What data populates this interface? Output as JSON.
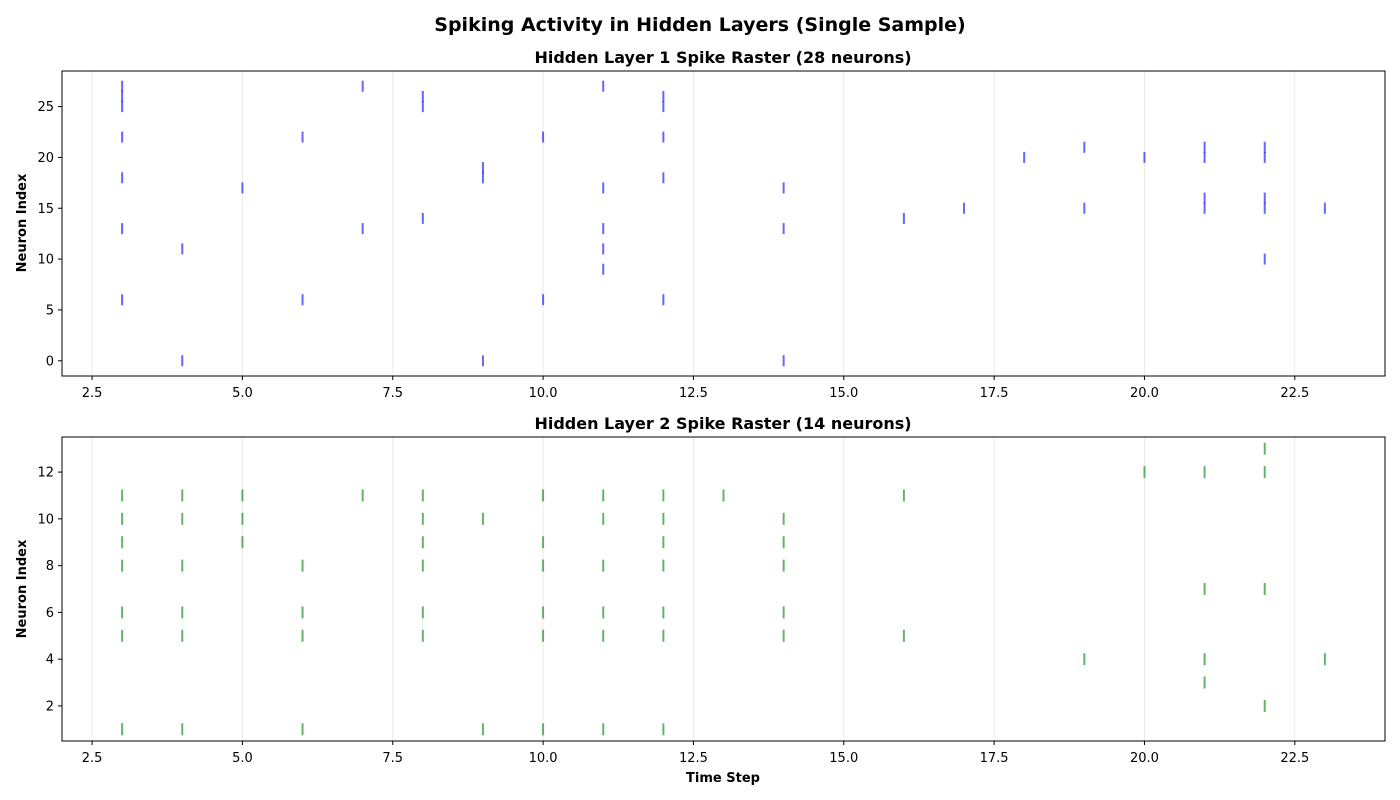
{
  "figure": {
    "title": "Spiking Activity in Hidden Layers (Single Sample)"
  },
  "chart_data": [
    {
      "type": "scatter",
      "marker": "vertical-line",
      "title": "Hidden Layer 1 Spike Raster (28 neurons)",
      "xlabel": "",
      "ylabel": "Neuron Index",
      "xlim": [
        2,
        24
      ],
      "ylim": [
        -1.5,
        28.5
      ],
      "xticks": [
        "2.5",
        "5.0",
        "7.5",
        "10.0",
        "12.5",
        "15.0",
        "17.5",
        "20.0",
        "22.5"
      ],
      "yticks": [
        "0",
        "5",
        "10",
        "15",
        "20",
        "25"
      ],
      "grid": "x",
      "color": "#0000ff",
      "spikes": [
        [
          3,
          27
        ],
        [
          3,
          26
        ],
        [
          3,
          25
        ],
        [
          3,
          22
        ],
        [
          3,
          18
        ],
        [
          3,
          13
        ],
        [
          3,
          6
        ],
        [
          4,
          11
        ],
        [
          4,
          0
        ],
        [
          5,
          17
        ],
        [
          6,
          22
        ],
        [
          6,
          6
        ],
        [
          7,
          27
        ],
        [
          7,
          13
        ],
        [
          8,
          26
        ],
        [
          8,
          25
        ],
        [
          8,
          14
        ],
        [
          9,
          19
        ],
        [
          9,
          18
        ],
        [
          9,
          0
        ],
        [
          10,
          22
        ],
        [
          10,
          6
        ],
        [
          11,
          27
        ],
        [
          11,
          17
        ],
        [
          11,
          13
        ],
        [
          11,
          11
        ],
        [
          11,
          9
        ],
        [
          12,
          26
        ],
        [
          12,
          25
        ],
        [
          12,
          22
        ],
        [
          12,
          18
        ],
        [
          12,
          6
        ],
        [
          14,
          17
        ],
        [
          14,
          13
        ],
        [
          14,
          0
        ],
        [
          16,
          14
        ],
        [
          17,
          15
        ],
        [
          18,
          20
        ],
        [
          19,
          21
        ],
        [
          19,
          15
        ],
        [
          20,
          20
        ],
        [
          21,
          21
        ],
        [
          21,
          20
        ],
        [
          21,
          16
        ],
        [
          21,
          15
        ],
        [
          22,
          21
        ],
        [
          22,
          20
        ],
        [
          22,
          16
        ],
        [
          22,
          15
        ],
        [
          22,
          10
        ],
        [
          23,
          15
        ]
      ]
    },
    {
      "type": "scatter",
      "marker": "vertical-line",
      "title": "Hidden Layer 2 Spike Raster (14 neurons)",
      "xlabel": "Time Step",
      "ylabel": "Neuron Index",
      "xlim": [
        2,
        24
      ],
      "ylim": [
        0.5,
        13.5
      ],
      "xticks": [
        "2.5",
        "5.0",
        "7.5",
        "10.0",
        "12.5",
        "15.0",
        "17.5",
        "20.0",
        "22.5"
      ],
      "yticks": [
        "2",
        "4",
        "6",
        "8",
        "10",
        "12"
      ],
      "grid": "x",
      "color": "#008000",
      "spikes": [
        [
          3,
          11
        ],
        [
          3,
          10
        ],
        [
          3,
          9
        ],
        [
          3,
          8
        ],
        [
          3,
          6
        ],
        [
          3,
          5
        ],
        [
          3,
          1
        ],
        [
          4,
          11
        ],
        [
          4,
          10
        ],
        [
          4,
          8
        ],
        [
          4,
          6
        ],
        [
          4,
          5
        ],
        [
          4,
          1
        ],
        [
          5,
          11
        ],
        [
          5,
          10
        ],
        [
          5,
          9
        ],
        [
          6,
          8
        ],
        [
          6,
          6
        ],
        [
          6,
          5
        ],
        [
          6,
          1
        ],
        [
          7,
          11
        ],
        [
          8,
          11
        ],
        [
          8,
          10
        ],
        [
          8,
          9
        ],
        [
          8,
          8
        ],
        [
          8,
          6
        ],
        [
          8,
          5
        ],
        [
          9,
          10
        ],
        [
          9,
          1
        ],
        [
          10,
          11
        ],
        [
          10,
          9
        ],
        [
          10,
          8
        ],
        [
          10,
          6
        ],
        [
          10,
          5
        ],
        [
          10,
          1
        ],
        [
          11,
          11
        ],
        [
          11,
          10
        ],
        [
          11,
          8
        ],
        [
          11,
          6
        ],
        [
          11,
          5
        ],
        [
          11,
          1
        ],
        [
          12,
          11
        ],
        [
          12,
          10
        ],
        [
          12,
          9
        ],
        [
          12,
          8
        ],
        [
          12,
          6
        ],
        [
          12,
          5
        ],
        [
          12,
          1
        ],
        [
          13,
          11
        ],
        [
          14,
          10
        ],
        [
          14,
          9
        ],
        [
          14,
          8
        ],
        [
          14,
          6
        ],
        [
          14,
          5
        ],
        [
          16,
          11
        ],
        [
          16,
          5
        ],
        [
          19,
          4
        ],
        [
          20,
          12
        ],
        [
          21,
          12
        ],
        [
          21,
          7
        ],
        [
          21,
          4
        ],
        [
          21,
          3
        ],
        [
          22,
          13
        ],
        [
          22,
          12
        ],
        [
          22,
          7
        ],
        [
          22,
          2
        ],
        [
          23,
          4
        ]
      ]
    }
  ]
}
